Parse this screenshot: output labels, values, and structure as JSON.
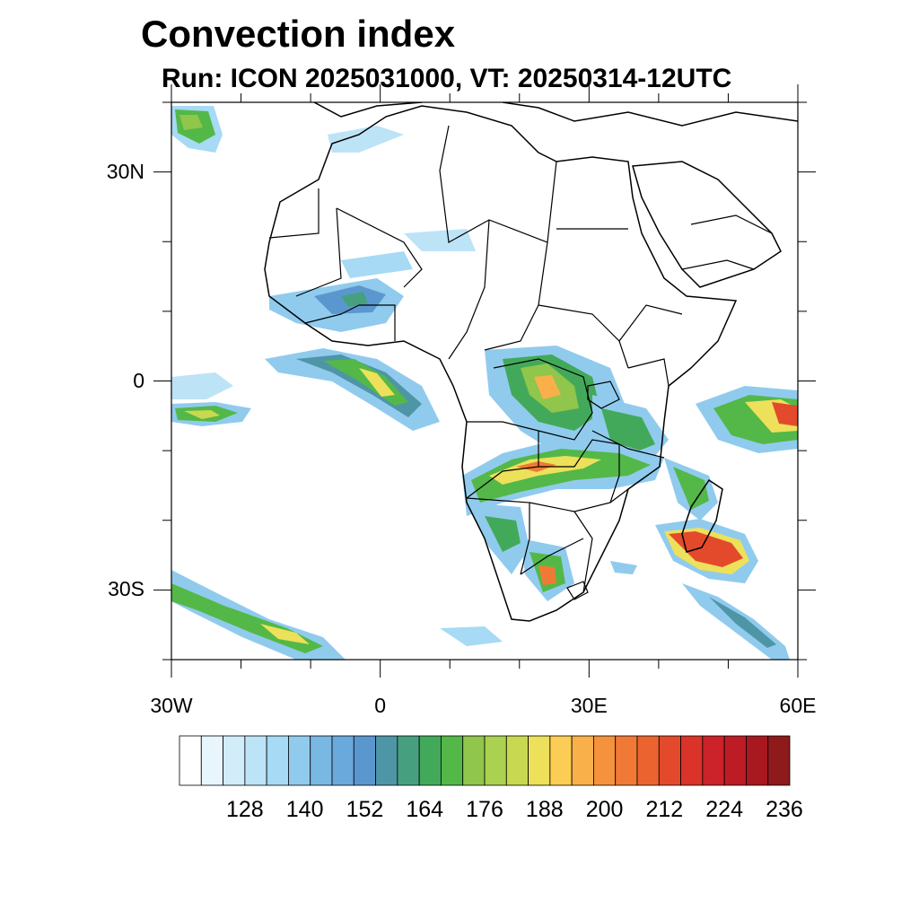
{
  "title": "Convection index",
  "subtitle": "Run: ICON 2025031000,  VT: 20250314-12UTC",
  "map": {
    "lon_range": [
      -30,
      60
    ],
    "lat_range": [
      -40,
      40
    ],
    "lat_labels": [
      {
        "value": 30,
        "label": "30N"
      },
      {
        "value": 0,
        "label": "0"
      },
      {
        "value": -30,
        "label": "30S"
      }
    ],
    "lon_labels": [
      {
        "value": -30,
        "label": "30W"
      },
      {
        "value": 0,
        "label": "0"
      },
      {
        "value": 30,
        "label": "30E"
      },
      {
        "value": 60,
        "label": "60E"
      }
    ]
  },
  "colorbar": {
    "colors": [
      "#ffffff",
      "#e8f5fc",
      "#d2ecf9",
      "#bde3f7",
      "#a6daf5",
      "#90cbee",
      "#7ab8e4",
      "#6aa9dc",
      "#5b97cf",
      "#4e95a6",
      "#46a07f",
      "#43a95a",
      "#53b848",
      "#8fc64b",
      "#aad14f",
      "#c9d851",
      "#ede05a",
      "#fbcd54",
      "#f9b04a",
      "#f5923e",
      "#f07a35",
      "#eb6430",
      "#e34a2b",
      "#da3329",
      "#cc2229",
      "#bd1c26",
      "#a8181f",
      "#8f1a1b"
    ],
    "labels": [
      "128",
      "140",
      "152",
      "164",
      "176",
      "188",
      "200",
      "212",
      "224",
      "236"
    ]
  }
}
